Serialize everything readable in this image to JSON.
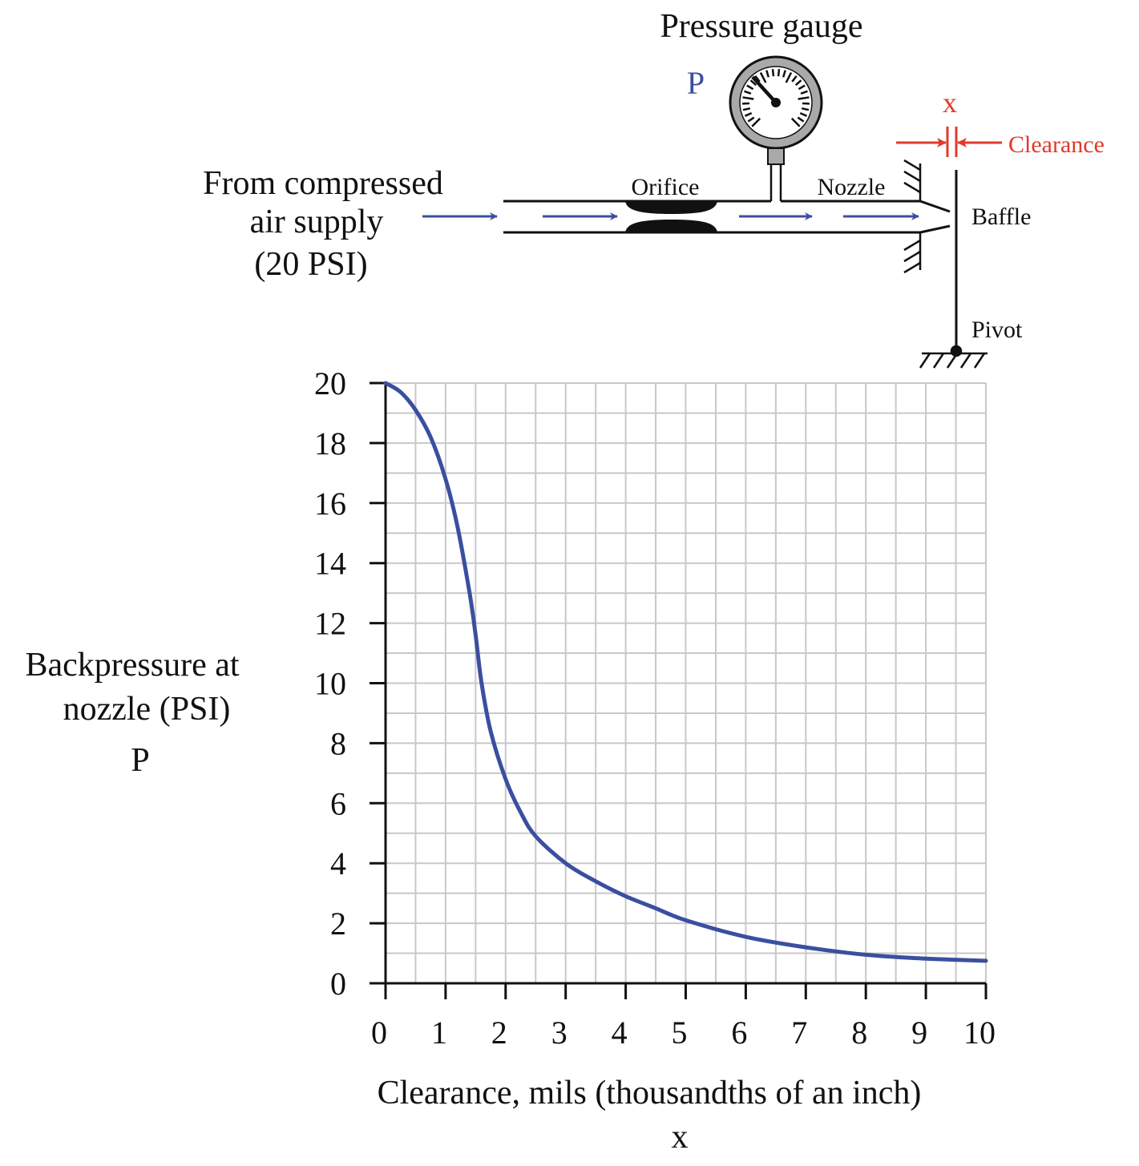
{
  "diagram": {
    "pressure_gauge_label": "Pressure gauge",
    "gauge_symbol": "P",
    "supply_label_line1": "From compressed",
    "supply_label_line2": "air supply",
    "supply_label_line3": "(20 PSI)",
    "orifice_label": "Orifice",
    "nozzle_label": "Nozzle",
    "baffle_label": "Baffle",
    "pivot_label": "Pivot",
    "clearance_symbol": "x",
    "clearance_label": "Clearance",
    "flow_color": "#3b4fa0",
    "clearance_color": "#e03a2a"
  },
  "chart_data": {
    "type": "line",
    "title": "",
    "xlabel": "Clearance, mils (thousandths of an inch)",
    "xlabel_symbol": "x",
    "ylabel_line1": "Backpressure at",
    "ylabel_line2": "nozzle (PSI)",
    "ylabel_symbol": "P",
    "xlim": [
      0,
      10
    ],
    "ylim": [
      0,
      20
    ],
    "x_ticks": [
      0,
      1,
      2,
      3,
      4,
      5,
      6,
      7,
      8,
      9,
      10
    ],
    "y_ticks": [
      0,
      2,
      4,
      6,
      8,
      10,
      12,
      14,
      16,
      18,
      20
    ],
    "grid": true,
    "grid_minor_step_x": 0.5,
    "grid_minor_step_y": 1,
    "line_color": "#3b4fa0",
    "series": [
      {
        "name": "Backpressure",
        "x": [
          0,
          0.25,
          0.5,
          0.75,
          1.0,
          1.2,
          1.4,
          1.5,
          1.6,
          1.75,
          2.0,
          2.25,
          2.5,
          3.0,
          3.5,
          4.0,
          4.5,
          5.0,
          6.0,
          7.0,
          8.0,
          9.0,
          10.0
        ],
        "values": [
          20,
          19.7,
          19.1,
          18.2,
          16.8,
          15.2,
          13.0,
          11.6,
          10.0,
          8.4,
          6.8,
          5.7,
          4.9,
          4.0,
          3.4,
          2.9,
          2.5,
          2.1,
          1.55,
          1.2,
          0.95,
          0.82,
          0.75
        ]
      }
    ]
  }
}
